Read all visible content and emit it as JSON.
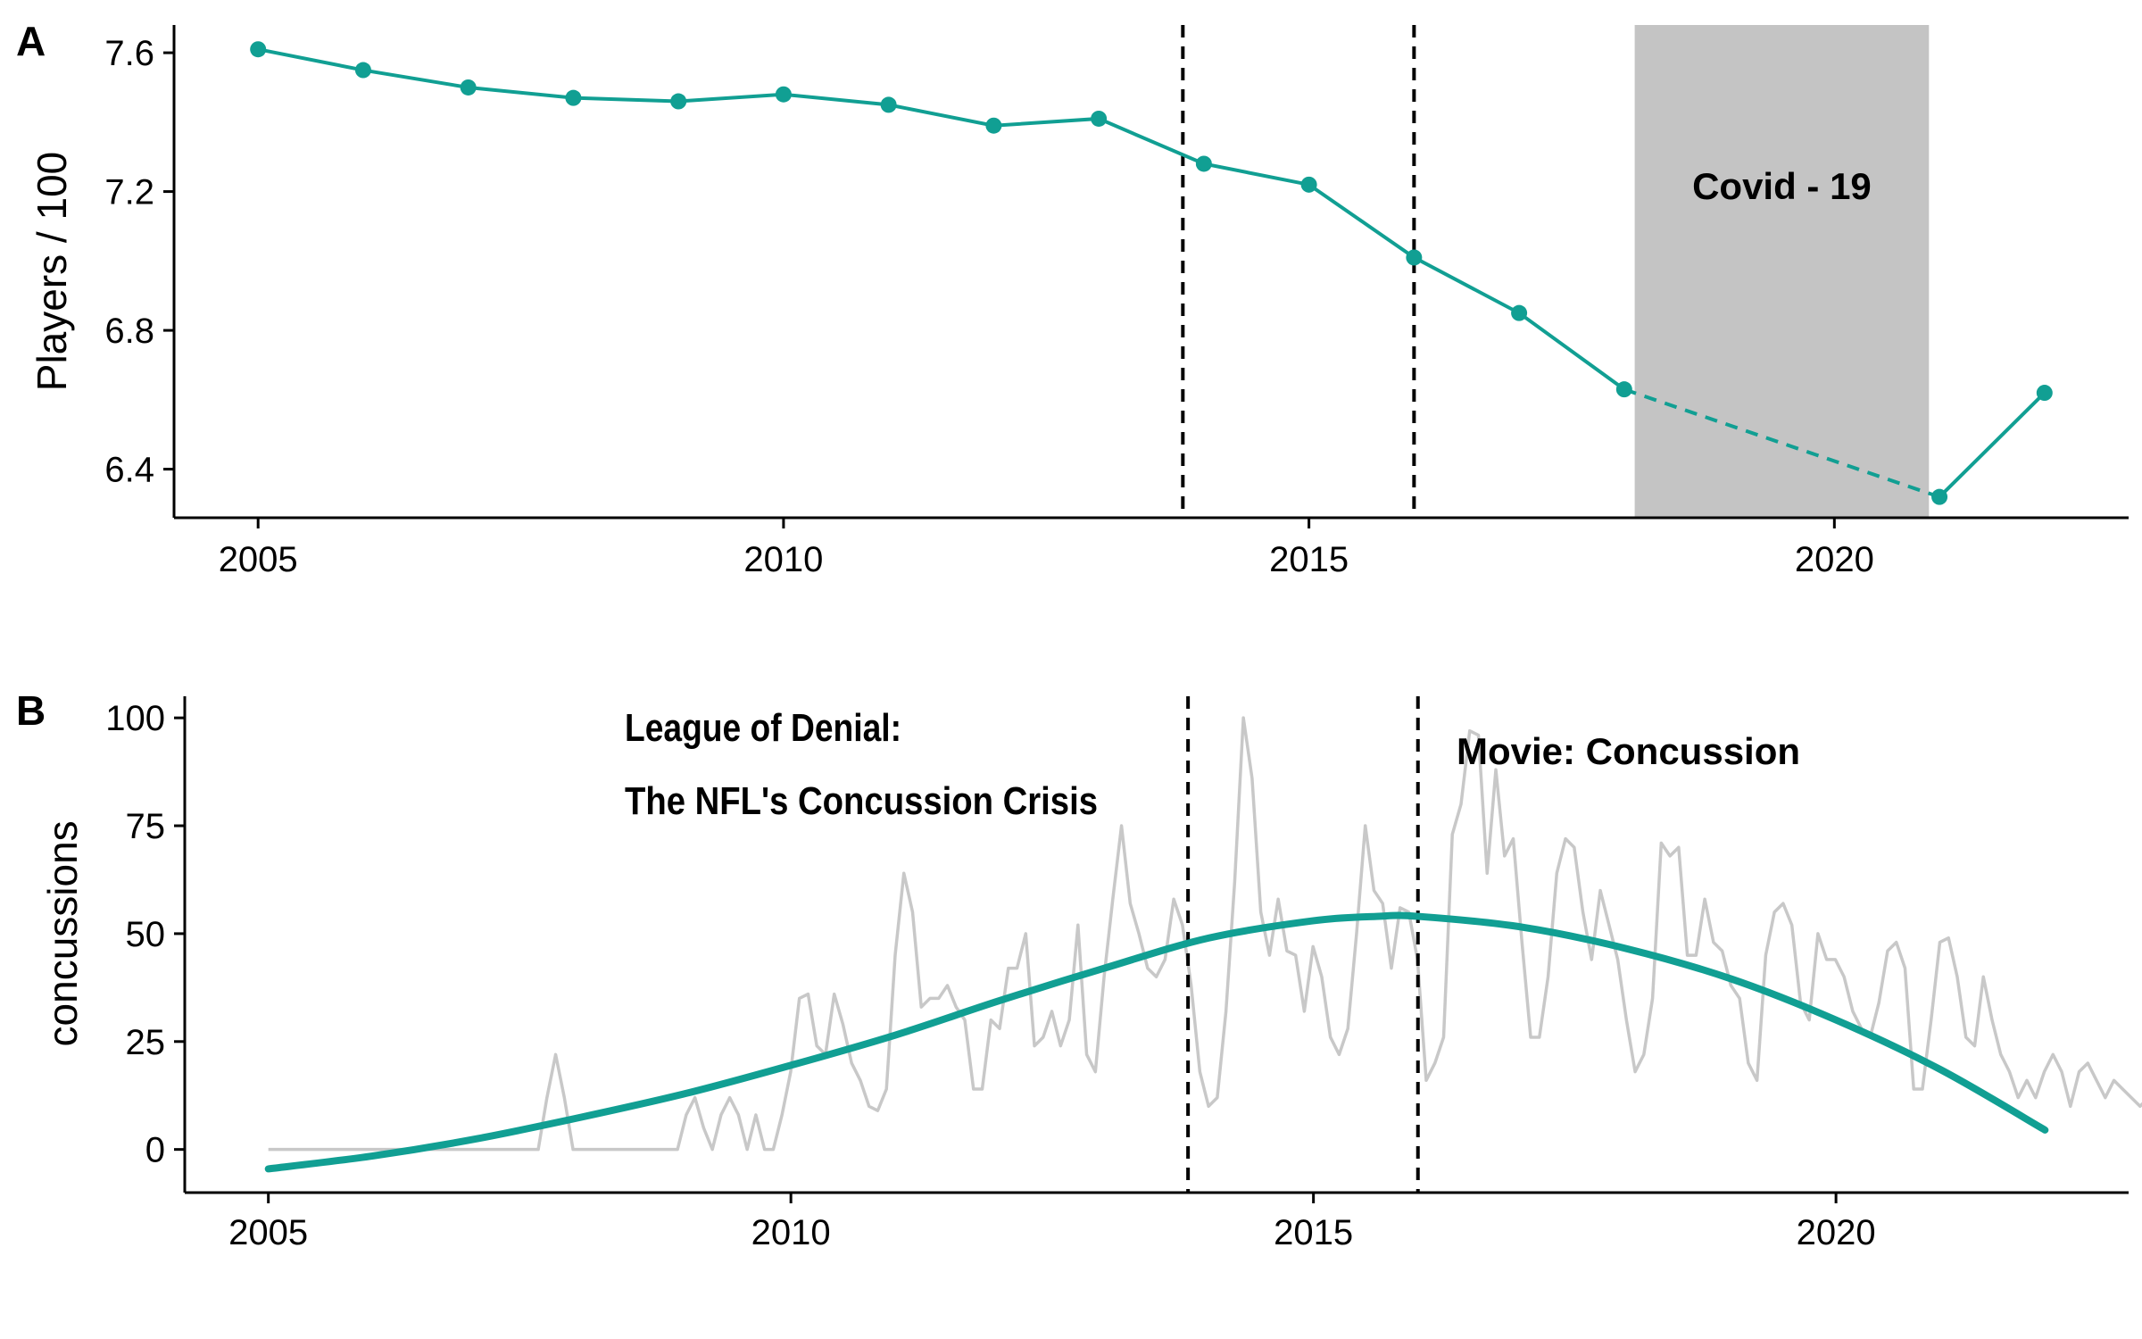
{
  "chart_data": [
    {
      "type": "line",
      "panel_label": "A",
      "ylabel": "Players / 100",
      "xlim": [
        2004.2,
        2022.8
      ],
      "ylim": [
        6.26,
        7.68
      ],
      "x_ticks": [
        2005,
        2010,
        2015,
        2020
      ],
      "y_ticks": [
        6.4,
        6.8,
        7.2,
        7.6
      ],
      "y_tick_labels": [
        "6.4",
        "6.8",
        "7.2",
        "7.6"
      ],
      "line_color": "#119f93",
      "series": [
        {
          "x": [
            2005,
            2006,
            2007,
            2008,
            2009,
            2010,
            2011,
            2012,
            2013,
            2014,
            2015,
            2016,
            2017,
            2018,
            2021,
            2022
          ],
          "y": [
            7.61,
            7.55,
            7.5,
            7.47,
            7.46,
            7.48,
            7.45,
            7.39,
            7.41,
            7.28,
            7.22,
            7.01,
            6.85,
            6.63,
            6.32,
            6.62
          ]
        }
      ],
      "dashed_segment": {
        "from_year": 2018,
        "to_year": 2021
      },
      "shaded_region": {
        "x_start": 2018.1,
        "x_end": 2020.9,
        "label": "Covid - 19",
        "color": "#c4c4c4"
      },
      "vertical_lines": [
        2013.8,
        2016.0
      ],
      "grid": false
    },
    {
      "type": "line",
      "panel_label": "B",
      "ylabel": "concussions",
      "xlim": [
        2004.2,
        2022.8
      ],
      "ylim": [
        -10,
        105
      ],
      "x_ticks": [
        2005,
        2010,
        2015,
        2020
      ],
      "y_ticks": [
        0,
        25,
        50,
        75,
        100
      ],
      "y_tick_labels": [
        "0",
        "25",
        "50",
        "75",
        "100"
      ],
      "raw_color": "#c8c8c8",
      "smooth_color": "#119f93",
      "raw_series": {
        "x_start": 2005.0,
        "x_step": 0.0833,
        "y": [
          0,
          0,
          0,
          0,
          0,
          0,
          0,
          0,
          0,
          0,
          0,
          0,
          0,
          0,
          0,
          0,
          0,
          0,
          0,
          0,
          0,
          0,
          0,
          0,
          0,
          0,
          0,
          0,
          0,
          0,
          0,
          0,
          12,
          22,
          12,
          0,
          0,
          0,
          0,
          0,
          0,
          0,
          0,
          0,
          0,
          0,
          0,
          0,
          8,
          12,
          5,
          0,
          8,
          12,
          8,
          0,
          8,
          0,
          0,
          8,
          18,
          35,
          36,
          24,
          22,
          36,
          29,
          20,
          16,
          10,
          9,
          14,
          45,
          64,
          55,
          33,
          35,
          35,
          38,
          33,
          30,
          14,
          14,
          30,
          28,
          42,
          42,
          50,
          24,
          26,
          32,
          24,
          30,
          52,
          22,
          18,
          40,
          58,
          75,
          57,
          50,
          42,
          40,
          44,
          58,
          52,
          38,
          18,
          10,
          12,
          32,
          62,
          100,
          86,
          55,
          45,
          58,
          46,
          45,
          32,
          47,
          40,
          26,
          22,
          28,
          50,
          75,
          60,
          57,
          42,
          56,
          55,
          44,
          16,
          20,
          26,
          73,
          80,
          97,
          96,
          64,
          88,
          68,
          72,
          48,
          26,
          26,
          40,
          64,
          72,
          70,
          55,
          44,
          60,
          52,
          44,
          30,
          18,
          22,
          35,
          71,
          68,
          70,
          45,
          45,
          58,
          48,
          46,
          38,
          35,
          20,
          16,
          45,
          55,
          57,
          52,
          34,
          30,
          50,
          44,
          44,
          40,
          32,
          28,
          26,
          34,
          46,
          48,
          42,
          14,
          14,
          30,
          48,
          49,
          40,
          26,
          24,
          40,
          30,
          22,
          18,
          12,
          16,
          12,
          18,
          22,
          18,
          10,
          18,
          20,
          16,
          12,
          16,
          14,
          12,
          10,
          12,
          18,
          19,
          19,
          12,
          20
        ]
      },
      "smooth_series": {
        "x": [
          2005.0,
          2006.0,
          2007.0,
          2008.0,
          2009.0,
          2010.0,
          2011.0,
          2012.0,
          2013.0,
          2014.0,
          2015.0,
          2015.6,
          2016.0,
          2017.0,
          2018.0,
          2019.0,
          2020.0,
          2021.0,
          2022.0
        ],
        "y": [
          -4.5,
          -1.5,
          2.5,
          7.5,
          13.0,
          19.5,
          26.5,
          34.5,
          42.0,
          49.0,
          53.0,
          54.0,
          54.0,
          51.5,
          46.5,
          39.5,
          30.0,
          18.5,
          4.5
        ]
      },
      "vertical_lines": [
        2013.8,
        2016.0
      ],
      "annotations": [
        {
          "lines": [
            "League of Denial:",
            "The NFL's  Concussion Crisis"
          ]
        },
        {
          "lines": [
            "Movie: Concussion"
          ]
        }
      ],
      "grid": false
    }
  ]
}
